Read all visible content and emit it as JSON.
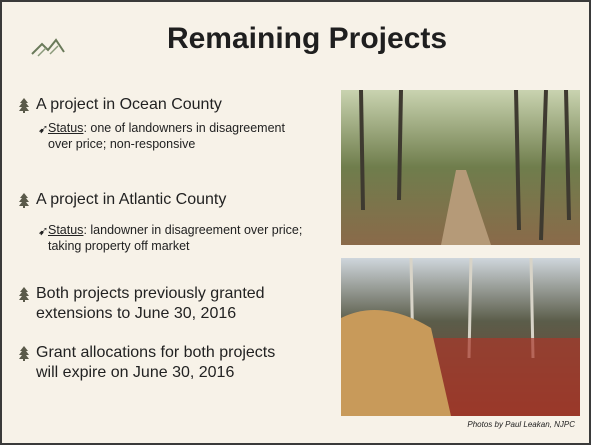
{
  "title": "Remaining Projects",
  "bullets": [
    {
      "text": "A project in Ocean County",
      "sub": [
        {
          "label": "Status",
          "text": ": one of landowners in disagreement over price; non-responsive"
        }
      ]
    },
    {
      "text": "A project in Atlantic County",
      "sub": [
        {
          "label": "Status",
          "text": ": landowner in disagreement over price; taking property off market"
        }
      ]
    },
    {
      "text": "Both projects previously granted extensions to June 30, 2016",
      "sub": []
    },
    {
      "text": "Grant allocations for both projects will expire on June 30, 2016",
      "sub": []
    }
  ],
  "photo_credit": "Photos by Paul Leakan, NJPC"
}
